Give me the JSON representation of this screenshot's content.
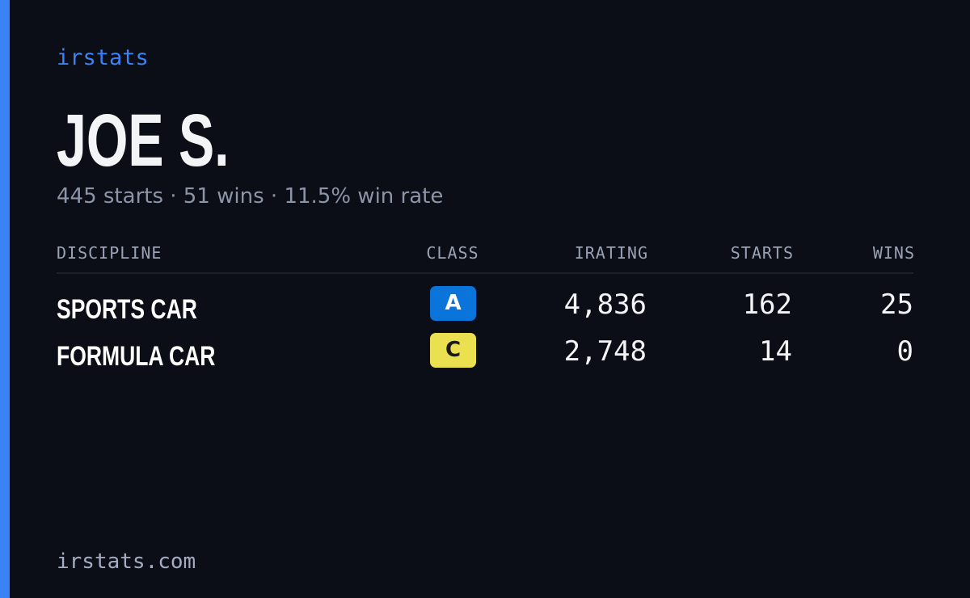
{
  "header": {
    "brand": "irstats",
    "name": "JOE S.",
    "summary": "445 starts · 51 wins · 11.5% win rate"
  },
  "table": {
    "columns": [
      "DISCIPLINE",
      "CLASS",
      "IRATING",
      "STARTS",
      "WINS"
    ],
    "rows": [
      [
        "SPORTS CAR",
        "A",
        "4,836",
        162,
        25
      ],
      [
        "FORMULA CAR",
        "C",
        "2,748",
        14,
        0
      ]
    ]
  },
  "footer": {
    "url": "irstats.com"
  }
}
